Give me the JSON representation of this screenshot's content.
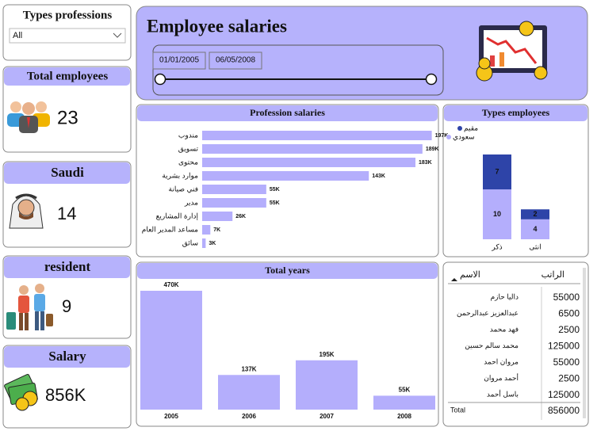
{
  "slicer": {
    "title": "Types  professions",
    "value": "All"
  },
  "header": {
    "title": "Employee salaries",
    "date_start": "01/01/2005",
    "date_end": "06/05/2008"
  },
  "cards": [
    {
      "title": "Total employees",
      "value": 23
    },
    {
      "title": "Saudi",
      "value": 14
    },
    {
      "title": "resident",
      "value": 9
    },
    {
      "title": "Salary",
      "value": "856K"
    }
  ],
  "chart_data": [
    {
      "type": "barh",
      "title": "Profession salaries",
      "categories": [
        "مندوب",
        "تسويق",
        "محتوى",
        "موارد بشرية",
        "فني صيانة",
        "مدير",
        "إدارة المشاريع",
        "مساعد المدير العام",
        "سائق"
      ],
      "values": [
        197000,
        189000,
        183000,
        143000,
        55000,
        55000,
        26000,
        7000,
        3000
      ],
      "value_labels": [
        "197K",
        "189K",
        "183K",
        "143K",
        "55K",
        "55K",
        "26K",
        "7K",
        "3K"
      ],
      "color": "#b4aefc",
      "xlim": [
        0,
        200000
      ]
    },
    {
      "type": "stacked-bar",
      "title": "Types employees",
      "categories": [
        "ذكر",
        "انثى"
      ],
      "series": [
        {
          "name": "سعودي",
          "color": "#b4aefc",
          "values": [
            10,
            4
          ]
        },
        {
          "name": "مقيم",
          "color": "#2e44a8",
          "values": [
            7,
            2
          ]
        }
      ],
      "ylim": [
        0,
        17
      ]
    },
    {
      "type": "bar",
      "title": "Total years",
      "categories": [
        "2005",
        "2006",
        "2007",
        "2008"
      ],
      "values": [
        470000,
        137000,
        195000,
        55000
      ],
      "value_labels": [
        "470K",
        "137K",
        "195K",
        "55K"
      ],
      "color": "#b4aefc",
      "ylim": [
        0,
        470000
      ]
    }
  ],
  "table": {
    "columns": [
      "الاسم",
      "الراتب"
    ],
    "rows": [
      [
        "داليا حازم",
        55000
      ],
      [
        "عبدالعزيز عبدالرحمن",
        6500
      ],
      [
        "فهد محمد",
        2500
      ],
      [
        "محمد سالم حسين",
        125000
      ],
      [
        "مروان احمد",
        55000
      ],
      [
        "أحمد مروان",
        2500
      ],
      [
        "باسل أحمد",
        125000
      ]
    ],
    "total": [
      "Total",
      856000
    ]
  }
}
